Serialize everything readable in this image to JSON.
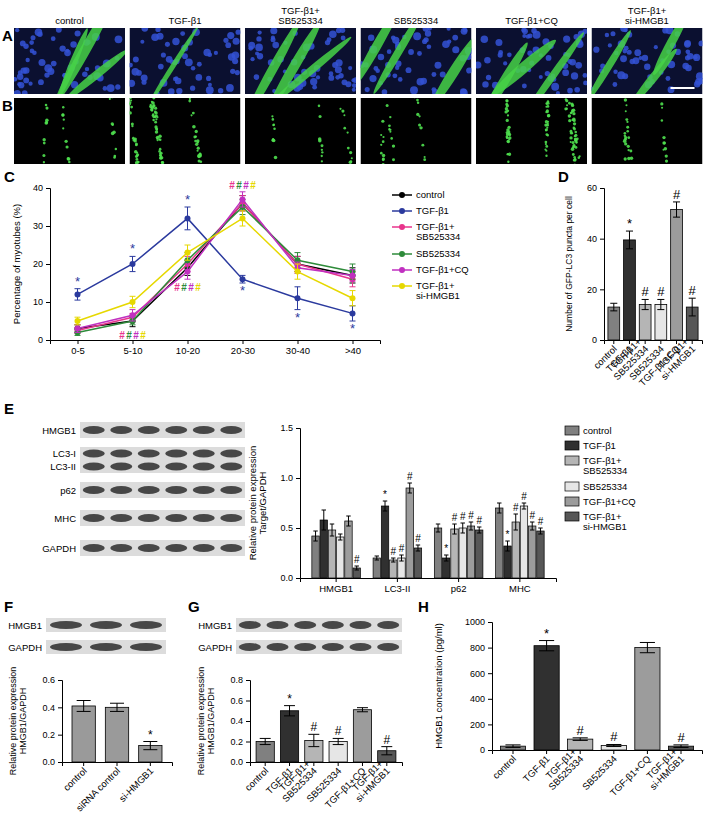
{
  "images": {
    "columns": [
      "control",
      "TGF-β1",
      "TGF-β1+\nSB525334",
      "SB525334",
      "TGF-β1+CQ",
      "TGF-β1+\nsi-HMGB1"
    ],
    "panels": [
      "A",
      "B"
    ]
  },
  "blots": [
    [
      [
        "HMGB1"
      ],
      [
        "LC3-I",
        "LC3-II"
      ],
      [
        "p62"
      ],
      [
        "MHC"
      ],
      [
        "GAPDH"
      ]
    ],
    [
      [
        "HMGB1"
      ],
      [
        "GAPDH"
      ]
    ],
    [
      [
        "HMGB1"
      ],
      [
        "GAPDH"
      ]
    ]
  ],
  "chart_data": [
    {
      "type": "line",
      "title": "C",
      "ylabel": "Percentage of myotubes (%)",
      "categories": [
        "0-5",
        "5-10",
        "10-20",
        "20-30",
        "30-40",
        ">40"
      ],
      "ylim": [
        0,
        40
      ],
      "yticks": [
        0,
        10,
        20,
        30,
        40
      ],
      "marker": "circle",
      "legend": "right",
      "series": [
        {
          "name": "control",
          "color": "#000000",
          "values": [
            3,
            5,
            19,
            36,
            20,
            17
          ],
          "errors": [
            1,
            1.5,
            2,
            2,
            2,
            2
          ]
        },
        {
          "name": "TGF-β1",
          "color": "#2b3a9e",
          "values": [
            12,
            20,
            32,
            16,
            11,
            7
          ],
          "errors": [
            1.5,
            2,
            3,
            1,
            3,
            2
          ],
          "annotations": [
            "*",
            "*",
            "*",
            "*",
            "*",
            "*"
          ]
        },
        {
          "name": "TGF-β1+\nSB525334",
          "color": "#e8348c",
          "values": [
            2.5,
            6,
            20,
            36,
            20,
            16
          ],
          "errors": [
            0.8,
            1,
            2,
            2,
            2,
            2
          ],
          "annotations": [
            null,
            "#",
            "#",
            "#",
            null,
            null
          ]
        },
        {
          "name": "SB525334",
          "color": "#2e8b3a",
          "values": [
            2,
            5,
            21,
            35,
            21,
            18
          ],
          "errors": [
            0.8,
            1,
            2,
            2,
            2,
            2
          ],
          "annotations": [
            null,
            "#",
            "#",
            "#",
            null,
            null
          ]
        },
        {
          "name": "TGF-β1+CQ",
          "color": "#c030c0",
          "values": [
            3,
            6.5,
            18,
            37,
            19,
            17
          ],
          "errors": [
            1,
            1.5,
            2,
            2,
            1.5,
            1.5
          ],
          "annotations": [
            null,
            "#",
            "#",
            "#",
            null,
            null
          ]
        },
        {
          "name": "TGF-β1+\nsi-HMGB1",
          "color": "#e6d800",
          "values": [
            5,
            10,
            23,
            32,
            18,
            11
          ],
          "errors": [
            1,
            1.5,
            2,
            2,
            2,
            2
          ],
          "annotations": [
            null,
            "#",
            "#",
            "#",
            null,
            null
          ]
        }
      ]
    },
    {
      "type": "bar",
      "title": "D",
      "ylabel": "Number of GFP-LC3 puncta per cell",
      "categories": [
        "control",
        "TGF-β1",
        "TGF-β1+\nSB525334",
        "SB525334",
        "TGF-β1+CQ",
        "TGF-β1+\nsi-HMGB1"
      ],
      "values": [
        13,
        39.5,
        14,
        14,
        51.5,
        13
      ],
      "errors": [
        1.5,
        3.5,
        2,
        2,
        3,
        3.5
      ],
      "annotations": [
        null,
        "*",
        "#",
        "#",
        "#",
        "#"
      ],
      "colors": [
        "#808080",
        "#303030",
        "#b5b5b5",
        "#e6e6e6",
        "#9c9c9c",
        "#575757"
      ],
      "ylim": [
        0,
        60
      ],
      "yticks": [
        0,
        20,
        40,
        60
      ]
    },
    {
      "type": "bar",
      "title": "E",
      "ylabel": "Relative protein expression\nTarget/GAPDH",
      "categories": [
        "HMGB1",
        "LC3-II",
        "p62",
        "MHC"
      ],
      "ylim": [
        0,
        1.5
      ],
      "yticks": [
        {
          "value": 0,
          "label": "0.0"
        },
        0.5,
        {
          "value": 1,
          "label": "1.0"
        },
        1.5
      ],
      "legend": "right",
      "series": [
        {
          "name": "control",
          "color": "#808080",
          "values": [
            0.42,
            0.2,
            0.5,
            0.7
          ],
          "errors": [
            0.05,
            0.02,
            0.04,
            0.05
          ]
        },
        {
          "name": "TGF-β1",
          "color": "#303030",
          "values": [
            0.58,
            0.72,
            0.2,
            0.32
          ],
          "errors": [
            0.1,
            0.05,
            0.03,
            0.05
          ],
          "annotations": [
            null,
            "*",
            "*",
            "*"
          ]
        },
        {
          "name": "TGF-β1+\nSB525334",
          "color": "#b5b5b5",
          "values": [
            0.48,
            0.18,
            0.49,
            0.56
          ],
          "errors": [
            0.06,
            0.02,
            0.05,
            0.08
          ],
          "annotations": [
            null,
            "#",
            "#",
            "#"
          ]
        },
        {
          "name": "SB525334",
          "color": "#e6e6e6",
          "values": [
            0.41,
            0.2,
            0.5,
            0.72
          ],
          "errors": [
            0.03,
            0.03,
            0.05,
            0.03
          ],
          "annotations": [
            null,
            "#",
            "#",
            "#"
          ]
        },
        {
          "name": "TGF-β1+CQ",
          "color": "#9c9c9c",
          "values": [
            0.57,
            0.9,
            0.52,
            0.52
          ],
          "errors": [
            0.05,
            0.05,
            0.04,
            0.04
          ],
          "annotations": [
            null,
            "#",
            "#",
            "#"
          ]
        },
        {
          "name": "TGF-β1+\nsi-HMGB1",
          "color": "#575757",
          "values": [
            0.1,
            0.3,
            0.48,
            0.47
          ],
          "errors": [
            0.02,
            0.03,
            0.03,
            0.03
          ],
          "annotations": [
            "#",
            "#",
            "#",
            "#"
          ]
        }
      ]
    },
    {
      "type": "bar",
      "title": "F",
      "ylabel": "Relative protein expression\nHMGB1/GAPDH",
      "categories": [
        "control",
        "siRNA control",
        "si-HMGB1"
      ],
      "values": [
        0.41,
        0.4,
        0.12
      ],
      "errors": [
        0.04,
        0.03,
        0.03
      ],
      "annotations": [
        null,
        null,
        "*"
      ],
      "color": "#9a9a9a",
      "ylim": [
        0,
        0.6
      ],
      "yticks": [
        {
          "value": 0,
          "label": "0.0"
        },
        0.2,
        0.4,
        0.6
      ]
    },
    {
      "type": "bar",
      "title": "G",
      "ylabel": "Relative protein expression\nHMGB1/GAPDH",
      "categories": [
        "control",
        "TGF-β1",
        "TGF-β1+\nSB525334",
        "SB525334",
        "TGF-β1+CQ",
        "TGF-β1+\nsi-HMGB1"
      ],
      "values": [
        0.2,
        0.5,
        0.21,
        0.2,
        0.51,
        0.11
      ],
      "errors": [
        0.03,
        0.05,
        0.06,
        0.03,
        0.02,
        0.04
      ],
      "annotations": [
        null,
        "*",
        "#",
        "#",
        null,
        "#"
      ],
      "colors": [
        "#808080",
        "#303030",
        "#b5b5b5",
        "#e6e6e6",
        "#9c9c9c",
        "#575757"
      ],
      "ylim": [
        0,
        0.8
      ],
      "yticks": [
        {
          "value": 0,
          "label": "0.0"
        },
        0.2,
        0.4,
        0.6,
        0.8
      ]
    },
    {
      "type": "bar",
      "title": "H",
      "ylabel": "HMGB1 concentration (pg/ml)",
      "categories": [
        "control",
        "TGF-β1",
        "TGF-β1+\nSB525334",
        "SB525334",
        "TGF-β1+CQ",
        "TGF-β1+\nsi-HMGB1"
      ],
      "values": [
        30,
        815,
        85,
        35,
        800,
        30
      ],
      "errors": [
        10,
        40,
        10,
        8,
        40,
        10
      ],
      "annotations": [
        null,
        "*",
        "#",
        "#",
        null,
        "#"
      ],
      "colors": [
        "#808080",
        "#303030",
        "#b5b5b5",
        "#e6e6e6",
        "#9c9c9c",
        "#575757"
      ],
      "ylim": [
        0,
        1000
      ],
      "yticks": [
        0,
        200,
        400,
        600,
        800,
        1000
      ]
    }
  ]
}
